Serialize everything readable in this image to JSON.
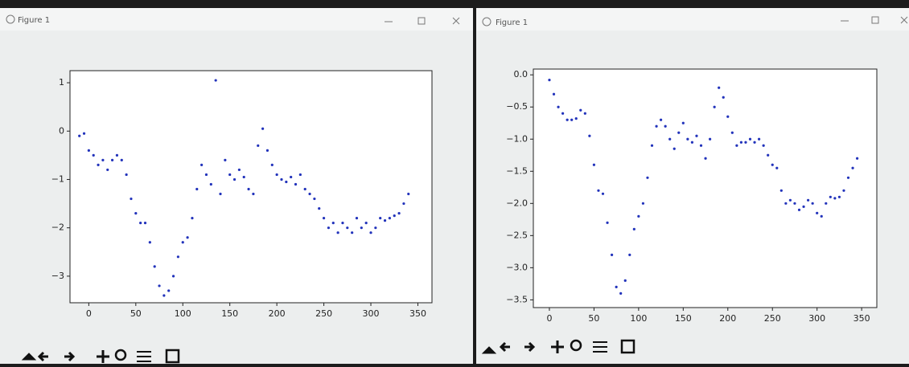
{
  "windows": [
    {
      "title": "Figure 1"
    },
    {
      "title": "Figure 1"
    }
  ],
  "chart_data": [
    {
      "type": "scatter",
      "color": "#2233bb",
      "x": [
        -10,
        -5,
        0,
        5,
        10,
        15,
        20,
        25,
        30,
        35,
        40,
        45,
        50,
        55,
        60,
        65,
        70,
        75,
        80,
        85,
        90,
        95,
        100,
        105,
        110,
        115,
        120,
        125,
        130,
        135,
        140,
        145,
        150,
        155,
        160,
        165,
        170,
        175,
        180,
        185,
        190,
        195,
        200,
        205,
        210,
        215,
        220,
        225,
        230,
        235,
        240,
        245,
        250,
        255,
        260,
        265,
        270,
        275,
        280,
        285,
        290,
        295,
        300,
        305,
        310,
        315,
        320,
        325,
        330,
        335,
        340
      ],
      "values": [
        -0.1,
        -0.05,
        -0.4,
        -0.5,
        -0.7,
        -0.6,
        -0.8,
        -0.6,
        -0.5,
        -0.6,
        -0.9,
        -1.4,
        -1.7,
        -1.9,
        -1.9,
        -2.3,
        -2.8,
        -3.2,
        -3.4,
        -3.3,
        -3.0,
        -2.6,
        -2.3,
        -2.2,
        -1.8,
        -1.2,
        -0.7,
        -0.9,
        -1.1,
        1.05,
        -1.3,
        -0.6,
        -0.9,
        -1.0,
        -0.8,
        -0.95,
        -1.2,
        -1.3,
        -0.3,
        0.05,
        -0.4,
        -0.7,
        -0.9,
        -1.0,
        -1.05,
        -0.95,
        -1.1,
        -0.9,
        -1.2,
        -1.3,
        -1.4,
        -1.6,
        -1.8,
        -2.0,
        -1.9,
        -2.1,
        -1.9,
        -2.0,
        -2.1,
        -1.8,
        -2.0,
        -1.9,
        -2.1,
        -2.0,
        -1.8,
        -1.85,
        -1.8,
        -1.75,
        -1.7,
        -1.5,
        -1.3
      ],
      "xlim": [
        -20,
        365
      ],
      "ylim": [
        -3.55,
        1.25
      ],
      "xticks": [
        0,
        50,
        100,
        150,
        200,
        250,
        300,
        350
      ],
      "yticks": [
        {
          "value": -3,
          "label": "−3"
        },
        {
          "value": -2,
          "label": "−2"
        },
        {
          "value": -1,
          "label": "−1"
        },
        0,
        1
      ]
    },
    {
      "type": "scatter",
      "color": "#2233bb",
      "x": [
        0,
        5,
        10,
        15,
        20,
        25,
        30,
        35,
        40,
        45,
        50,
        55,
        60,
        65,
        70,
        75,
        80,
        85,
        90,
        95,
        100,
        105,
        110,
        115,
        120,
        125,
        130,
        135,
        140,
        145,
        150,
        155,
        160,
        165,
        170,
        175,
        180,
        185,
        190,
        195,
        200,
        205,
        210,
        215,
        220,
        225,
        230,
        235,
        240,
        245,
        250,
        255,
        260,
        265,
        270,
        275,
        280,
        285,
        290,
        295,
        300,
        305,
        310,
        315,
        320,
        325,
        330,
        335,
        340,
        345
      ],
      "values": [
        -0.08,
        -0.3,
        -0.5,
        -0.6,
        -0.7,
        -0.7,
        -0.68,
        -0.55,
        -0.6,
        -0.95,
        -1.4,
        -1.8,
        -1.85,
        -2.3,
        -2.8,
        -3.3,
        -3.4,
        -3.2,
        -2.8,
        -2.4,
        -2.2,
        -2.0,
        -1.6,
        -1.1,
        -0.8,
        -0.7,
        -0.8,
        -1.0,
        -1.15,
        -0.9,
        -0.75,
        -1.0,
        -1.05,
        -0.95,
        -1.1,
        -1.3,
        -1.0,
        -0.5,
        -0.2,
        -0.35,
        -0.65,
        -0.9,
        -1.1,
        -1.05,
        -1.05,
        -1.0,
        -1.05,
        -1.0,
        -1.1,
        -1.25,
        -1.4,
        -1.45,
        -1.8,
        -2.0,
        -1.95,
        -2.0,
        -2.1,
        -2.05,
        -1.95,
        -2.0,
        -2.15,
        -2.2,
        -2.0,
        -1.9,
        -1.92,
        -1.9,
        -1.8,
        -1.6,
        -1.45,
        -1.3
      ],
      "xlim": [
        -18,
        367
      ],
      "ylim": [
        -3.62,
        0.09
      ],
      "xticks": [
        0,
        50,
        100,
        150,
        200,
        250,
        300,
        350
      ],
      "yticks": [
        {
          "value": -3.5,
          "label": "−3.5"
        },
        {
          "value": -3,
          "label": "−3.0"
        },
        {
          "value": -2.5,
          "label": "−2.5"
        },
        {
          "value": -2,
          "label": "−2.0"
        },
        {
          "value": -1.5,
          "label": "−1.5"
        },
        {
          "value": -1,
          "label": "−1.0"
        },
        {
          "value": -0.5,
          "label": "−0.5"
        },
        {
          "value": 0,
          "label": "0.0"
        }
      ]
    }
  ]
}
